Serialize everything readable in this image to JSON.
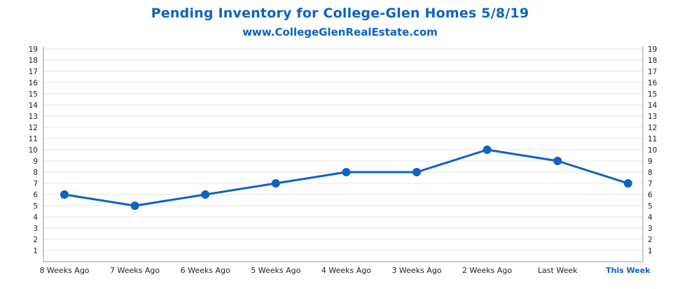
{
  "title": "Pending Inventory for College-Glen Homes 5/8/19",
  "subtitle": "www.CollegeGlenRealEstate.com",
  "colors": {
    "line": "#0b63c4",
    "grid": "#e4e4e4",
    "axis": "#9a9a9a",
    "highlight_label": "#0b63c4"
  },
  "chart_data": {
    "type": "line",
    "categories": [
      "8 Weeks Ago",
      "7 Weeks Ago",
      "6 Weeks Ago",
      "5 Weeks Ago",
      "4 Weeks Ago",
      "3 Weeks Ago",
      "2 Weeks Ago",
      "Last Week",
      "This Week"
    ],
    "highlighted_category": "This Week",
    "series": [
      {
        "values": [
          6,
          5,
          6,
          7,
          8,
          8,
          10,
          9,
          7
        ]
      }
    ],
    "y_ticks": [
      1,
      2,
      3,
      4,
      5,
      6,
      7,
      8,
      9,
      10,
      11,
      12,
      13,
      14,
      15,
      16,
      17,
      18,
      19
    ],
    "ylim": [
      0,
      19
    ],
    "y_axis_labels": "left-and-right",
    "grid": true,
    "markers": "filled-circle",
    "legend": "none"
  }
}
